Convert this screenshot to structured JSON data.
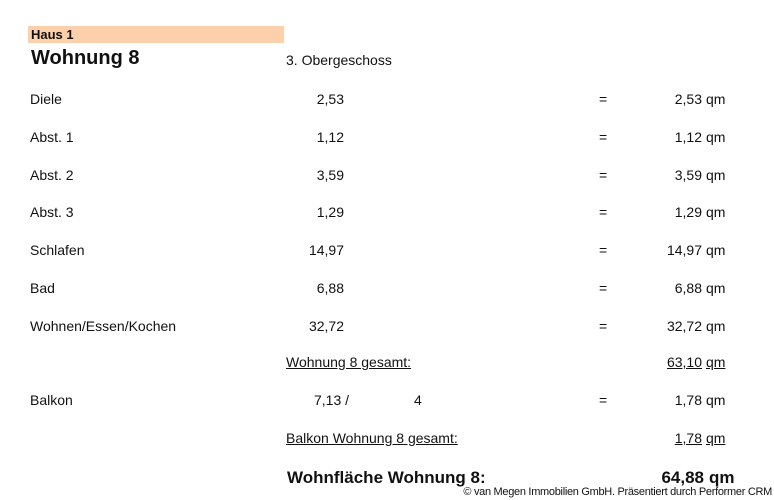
{
  "header": {
    "haus": "Haus 1",
    "title": "Wohnung 8",
    "floor": "3. Obergeschoss"
  },
  "rooms": [
    {
      "name": "Diele",
      "value": "2,53",
      "eq": "=",
      "result": "2,53",
      "unit": "qm"
    },
    {
      "name": "Abst. 1",
      "value": "1,12",
      "eq": "=",
      "result": "1,12",
      "unit": "qm"
    },
    {
      "name": "Abst. 2",
      "value": "3,59",
      "eq": "=",
      "result": "3,59",
      "unit": "qm"
    },
    {
      "name": "Abst. 3",
      "value": "1,29",
      "eq": "=",
      "result": "1,29",
      "unit": "qm"
    },
    {
      "name": "Schlafen",
      "value": "14,97",
      "eq": "=",
      "result": "14,97",
      "unit": "qm"
    },
    {
      "name": "Bad",
      "value": "6,88",
      "eq": "=",
      "result": "6,88",
      "unit": "qm"
    },
    {
      "name": "Wohnen/Essen/Kochen",
      "value": "32,72",
      "eq": "=",
      "result": "32,72",
      "unit": "qm"
    }
  ],
  "wohnung_total": {
    "label": "Wohnung 8 gesamt:",
    "value": "63,10",
    "unit": "qm"
  },
  "balkon": {
    "name": "Balkon",
    "value": "7,13 /",
    "divisor": "4",
    "eq": "=",
    "result": "1,78",
    "unit": "qm"
  },
  "balkon_total": {
    "label": "Balkon Wohnung 8 gesamt:",
    "value": "1,78",
    "unit": "qm"
  },
  "wohnflaeche": {
    "label": "Wohnfläche Wohnung 8:",
    "value": "64,88",
    "unit": "qm"
  },
  "copyright": "© van Megen Immobilien GmbH. Präsentiert durch Performer CRM"
}
